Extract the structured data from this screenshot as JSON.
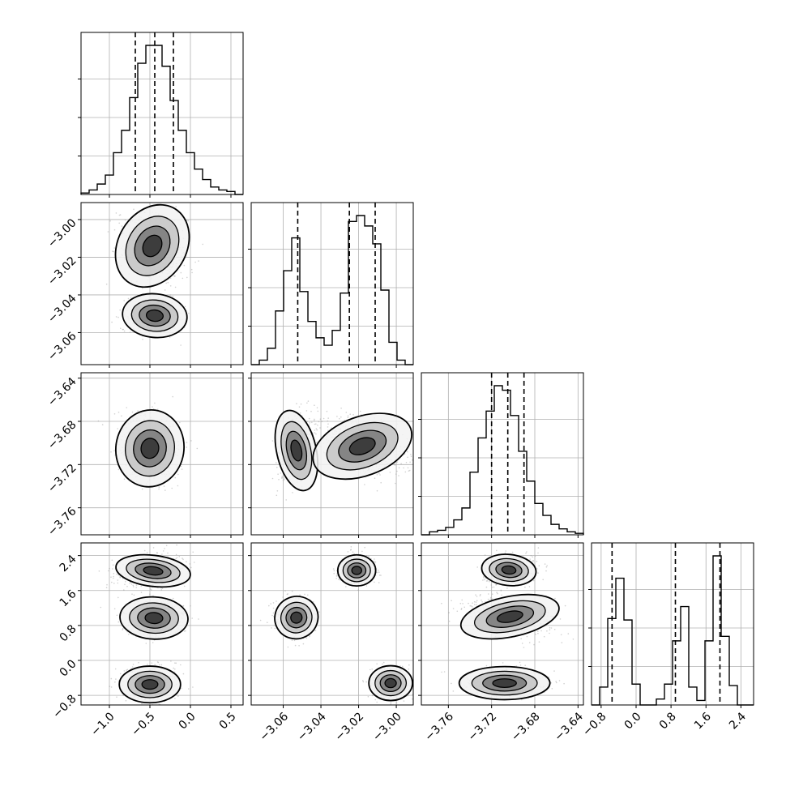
{
  "chart_data": {
    "type": "corner",
    "description_level": "1D histograms on diagonal, 2D density contours off-diagonal",
    "grid": true,
    "colors": {
      "line": "#000000",
      "grid": "#b0b0b0",
      "scatter": "#9a9a9a",
      "background": "#ffffff"
    },
    "params": [
      {
        "range": [
          -1.35,
          0.65
        ],
        "ticks": [
          -1.0,
          -0.5,
          0.0,
          0.5
        ],
        "tick_labels": [
          "−1.0",
          "−0.5",
          "0.0",
          "0.5"
        ],
        "quantiles": [
          -0.68,
          -0.44,
          -0.21
        ]
      },
      {
        "range": [
          -3.077,
          -2.991
        ],
        "ticks": [
          -3.06,
          -3.04,
          -3.02,
          -3.0
        ],
        "tick_labels": [
          "−3.06",
          "−3.04",
          "−3.02",
          "−3.00"
        ],
        "quantiles": [
          -3.0523,
          -3.0249,
          -3.0112
        ]
      },
      {
        "range": [
          -3.785,
          -3.635
        ],
        "ticks": [
          -3.76,
          -3.72,
          -3.68,
          -3.64
        ],
        "tick_labels": [
          "−3.76",
          "−3.72",
          "−3.68",
          "−3.64"
        ],
        "quantiles": [
          -3.72,
          -3.705,
          -3.69
        ]
      },
      {
        "range": [
          -1.02,
          2.69
        ],
        "ticks": [
          -0.8,
          0.0,
          0.8,
          1.6,
          2.4
        ],
        "tick_labels": [
          "−0.8",
          "0.0",
          "0.8",
          "1.6",
          "2.4"
        ],
        "quantiles": [
          -0.55,
          0.9,
          1.92
        ]
      }
    ],
    "histograms": [
      [
        0.01,
        0.03,
        0.07,
        0.13,
        0.28,
        0.43,
        0.65,
        0.88,
        1.0,
        1.0,
        0.86,
        0.63,
        0.43,
        0.28,
        0.17,
        0.1,
        0.05,
        0.03,
        0.02,
        0.0
      ],
      [
        0.0,
        0.03,
        0.11,
        0.36,
        0.63,
        0.85,
        0.49,
        0.29,
        0.18,
        0.13,
        0.23,
        0.48,
        0.96,
        1.0,
        0.93,
        0.81,
        0.5,
        0.15,
        0.03,
        0.0
      ],
      [
        0.0,
        0.02,
        0.03,
        0.05,
        0.1,
        0.18,
        0.42,
        0.65,
        0.83,
        1.0,
        0.97,
        0.8,
        0.56,
        0.36,
        0.21,
        0.13,
        0.07,
        0.04,
        0.02,
        0.01
      ],
      [
        0.0,
        0.12,
        0.58,
        0.85,
        0.57,
        0.14,
        0.0,
        0.0,
        0.04,
        0.14,
        0.43,
        0.66,
        0.12,
        0.03,
        0.43,
        1.0,
        0.46,
        0.13,
        0.0,
        0.0
      ]
    ],
    "blobs": {
      "1,0": [
        {
          "x": -0.47,
          "y": -3.014,
          "sx": 0.2,
          "sy": 0.011,
          "rot": -0.55,
          "w": 1.0
        },
        {
          "x": -0.44,
          "y": -3.051,
          "sx": 0.19,
          "sy": 0.0055,
          "rot": -0.1,
          "w": 0.55
        }
      ],
      "2,0": [
        {
          "x": -0.5,
          "y": -3.705,
          "sx": 0.2,
          "sy": 0.017,
          "rot": -0.15,
          "w": 1.0
        }
      ],
      "2,1": [
        {
          "x": -3.053,
          "y": -3.707,
          "sx": 0.005,
          "sy": 0.018,
          "rot": 0.22,
          "w": 0.65
        },
        {
          "x": -3.018,
          "y": -3.703,
          "sx": 0.013,
          "sy": 0.013,
          "rot": 0.35,
          "w": 1.0
        }
      ],
      "3,0": [
        {
          "x": -0.46,
          "y": 2.05,
          "sx": 0.22,
          "sy": 0.17,
          "rot": -0.12,
          "w": 1.0
        },
        {
          "x": -0.45,
          "y": 0.97,
          "sx": 0.2,
          "sy": 0.23,
          "rot": -0.05,
          "w": 0.8
        },
        {
          "x": -0.5,
          "y": -0.55,
          "sx": 0.18,
          "sy": 0.2,
          "rot": 0.0,
          "w": 0.9
        }
      ],
      "3,1": [
        {
          "x": -3.053,
          "y": 0.98,
          "sx": 0.0055,
          "sy": 0.23,
          "rot": 0.5,
          "w": 0.8
        },
        {
          "x": -3.021,
          "y": 2.06,
          "sx": 0.0048,
          "sy": 0.17,
          "rot": 0.0,
          "w": 1.0
        },
        {
          "x": -3.003,
          "y": -0.52,
          "sx": 0.0055,
          "sy": 0.19,
          "rot": 0.0,
          "w": 0.9
        }
      ],
      "3,2": [
        {
          "x": -3.704,
          "y": 2.07,
          "sx": 0.012,
          "sy": 0.17,
          "rot": -0.1,
          "w": 1.0
        },
        {
          "x": -3.703,
          "y": 1.0,
          "sx": 0.022,
          "sy": 0.22,
          "rot": 0.2,
          "w": 0.8
        },
        {
          "x": -3.708,
          "y": -0.52,
          "sx": 0.02,
          "sy": 0.18,
          "rot": 0.0,
          "w": 0.9
        }
      ]
    }
  }
}
